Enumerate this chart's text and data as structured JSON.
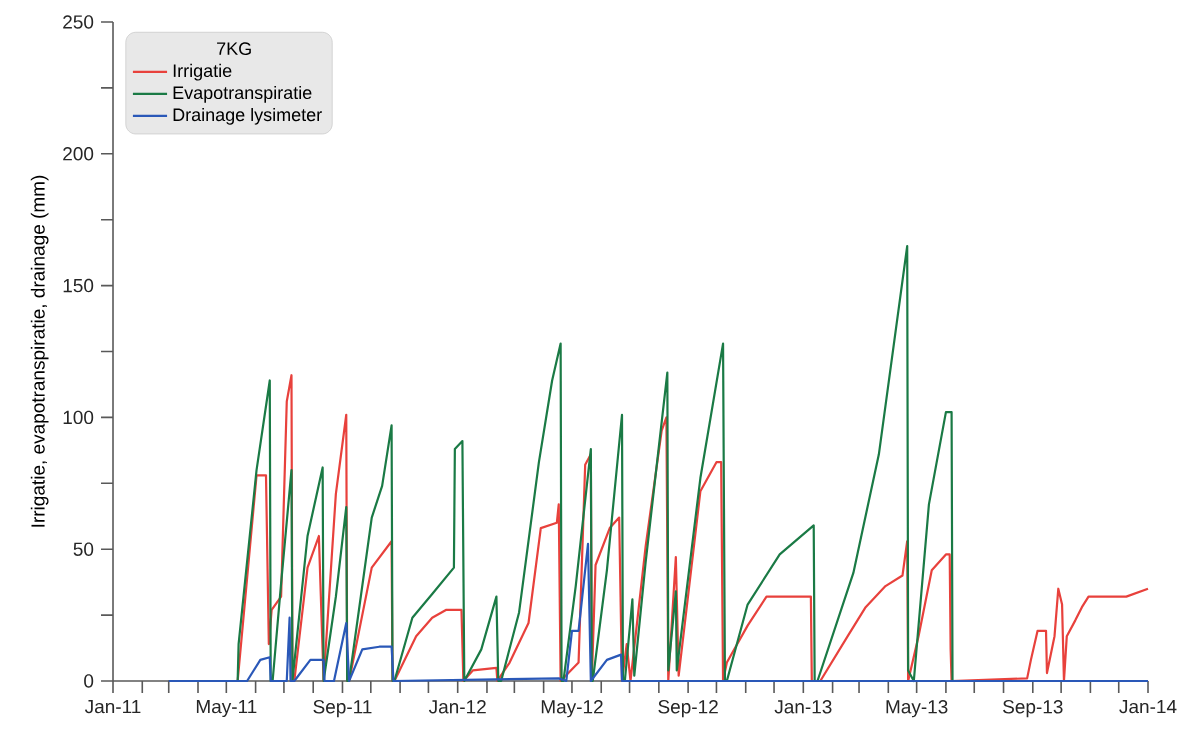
{
  "chart_data": {
    "type": "line",
    "ylabel": "Irrigatie, evapotranspiratie, drainage (mm)",
    "legend_title": "7KG",
    "legend": "top left",
    "grid": false,
    "marker": "none",
    "line_style": "solid",
    "xlim": [
      "2011-01-01",
      "2014-01-01"
    ],
    "ylim": [
      0,
      250
    ],
    "xticks": [
      {
        "value": "2011-01-01",
        "label": "Jan-11"
      },
      {
        "value": "2011-02-01",
        "label": null
      },
      {
        "value": "2011-03-01",
        "label": null
      },
      {
        "value": "2011-04-01",
        "label": null
      },
      {
        "value": "2011-05-01",
        "label": "May-11"
      },
      {
        "value": "2011-06-01",
        "label": null
      },
      {
        "value": "2011-07-01",
        "label": null
      },
      {
        "value": "2011-08-01",
        "label": null
      },
      {
        "value": "2011-09-01",
        "label": "Sep-11"
      },
      {
        "value": "2011-10-01",
        "label": null
      },
      {
        "value": "2011-11-01",
        "label": null
      },
      {
        "value": "2011-12-01",
        "label": null
      },
      {
        "value": "2012-01-01",
        "label": "Jan-12"
      },
      {
        "value": "2012-02-01",
        "label": null
      },
      {
        "value": "2012-03-01",
        "label": null
      },
      {
        "value": "2012-04-01",
        "label": null
      },
      {
        "value": "2012-05-01",
        "label": "May-12"
      },
      {
        "value": "2012-06-01",
        "label": null
      },
      {
        "value": "2012-07-01",
        "label": null
      },
      {
        "value": "2012-08-01",
        "label": null
      },
      {
        "value": "2012-09-01",
        "label": "Sep-12"
      },
      {
        "value": "2012-10-01",
        "label": null
      },
      {
        "value": "2012-11-01",
        "label": null
      },
      {
        "value": "2012-12-01",
        "label": null
      },
      {
        "value": "2013-01-01",
        "label": "Jan-13"
      },
      {
        "value": "2013-02-01",
        "label": null
      },
      {
        "value": "2013-03-01",
        "label": null
      },
      {
        "value": "2013-04-01",
        "label": null
      },
      {
        "value": "2013-05-01",
        "label": "May-13"
      },
      {
        "value": "2013-06-01",
        "label": null
      },
      {
        "value": "2013-07-01",
        "label": null
      },
      {
        "value": "2013-08-01",
        "label": null
      },
      {
        "value": "2013-09-01",
        "label": "Sep-13"
      },
      {
        "value": "2013-10-01",
        "label": null
      },
      {
        "value": "2013-11-01",
        "label": null
      },
      {
        "value": "2013-12-01",
        "label": null
      },
      {
        "value": "2014-01-01",
        "label": "Jan-14"
      }
    ],
    "yticks": [
      0,
      {
        "value": 25,
        "label": null
      },
      50,
      {
        "value": 75,
        "label": null
      },
      100,
      {
        "value": 125,
        "label": null
      },
      150,
      {
        "value": 175,
        "label": null
      },
      200,
      {
        "value": 225,
        "label": null
      },
      250
    ],
    "series": [
      {
        "name": "Irrigatie",
        "color": "#e8413c",
        "x": [
          "2011-03-01",
          "2011-05-13",
          "2011-06-02",
          "2011-06-12",
          "2011-06-15",
          "2011-06-18",
          "2011-06-28",
          "2011-07-04",
          "2011-07-09",
          "2011-07-10",
          "2011-07-12",
          "2011-07-26",
          "2011-08-07",
          "2011-08-12",
          "2011-08-25",
          "2011-09-05",
          "2011-09-06",
          "2011-09-08",
          "2011-10-02",
          "2011-10-23",
          "2011-10-24",
          "2011-10-26",
          "2011-11-18",
          "2011-12-05",
          "2011-12-20",
          "2012-01-05",
          "2012-01-07",
          "2012-01-17",
          "2012-02-11",
          "2012-02-12",
          "2012-02-25",
          "2012-03-16",
          "2012-03-29",
          "2012-04-15",
          "2012-04-17",
          "2012-04-19",
          "2012-05-08",
          "2012-05-15",
          "2012-05-21",
          "2012-05-22",
          "2012-05-26",
          "2012-06-10",
          "2012-06-20",
          "2012-06-23",
          "2012-06-28",
          "2012-07-02",
          "2012-07-18",
          "2012-08-04",
          "2012-08-09",
          "2012-08-11",
          "2012-08-19",
          "2012-08-22",
          "2012-09-14",
          "2012-10-01",
          "2012-10-06",
          "2012-10-08",
          "2012-10-12",
          "2012-11-03",
          "2012-11-23",
          "2013-01-09",
          "2013-01-10",
          "2013-01-19",
          "2013-02-17",
          "2013-03-08",
          "2013-03-29",
          "2013-04-16",
          "2013-04-21",
          "2013-04-22",
          "2013-05-03",
          "2013-05-17",
          "2013-06-01",
          "2013-06-05",
          "2013-06-06",
          "2013-06-07",
          "2013-08-26",
          "2013-08-30",
          "2013-09-06",
          "2013-09-15",
          "2013-09-16",
          "2013-09-24",
          "2013-09-28",
          "2013-10-02",
          "2013-10-04",
          "2013-10-07",
          "2013-10-16",
          "2013-10-23",
          "2013-10-30",
          "2013-12-09",
          "2014-01-01"
        ],
        "values": [
          0,
          0,
          78,
          78,
          14,
          27,
          32,
          106,
          116,
          0,
          0,
          43,
          55,
          0,
          71,
          101,
          0,
          0,
          43,
          53,
          0,
          0,
          17,
          24,
          27,
          27,
          0,
          4,
          5,
          0,
          7,
          22,
          58,
          60,
          67,
          0,
          7,
          82,
          86,
          0,
          44,
          58,
          62,
          0,
          14,
          0,
          51,
          95,
          100,
          0,
          47,
          2,
          72,
          83,
          83,
          0,
          7,
          21,
          32,
          32,
          0,
          0,
          17,
          28,
          36,
          40,
          53,
          0,
          17,
          42,
          48,
          48,
          12,
          0,
          1,
          8,
          19,
          19,
          3,
          17,
          35,
          29,
          0,
          17,
          23,
          28,
          32,
          32,
          35
        ]
      },
      {
        "name": "Evapotranspiratie",
        "color": "#1a7a45",
        "x": [
          "2011-03-01",
          "2011-05-13",
          "2011-05-14",
          "2011-06-02",
          "2011-06-16",
          "2011-06-17",
          "2011-06-19",
          "2011-06-28",
          "2011-07-09",
          "2011-07-10",
          "2011-07-26",
          "2011-08-11",
          "2011-08-12",
          "2011-08-25",
          "2011-09-05",
          "2011-09-06",
          "2011-09-08",
          "2011-10-02",
          "2011-10-13",
          "2011-10-23",
          "2011-10-24",
          "2011-10-26",
          "2011-11-14",
          "2011-12-05",
          "2011-12-28",
          "2011-12-29",
          "2012-01-06",
          "2012-01-08",
          "2012-01-26",
          "2012-02-11",
          "2012-02-13",
          "2012-02-16",
          "2012-03-06",
          "2012-03-27",
          "2012-04-10",
          "2012-04-19",
          "2012-04-20",
          "2012-04-22",
          "2012-05-05",
          "2012-05-21",
          "2012-05-22",
          "2012-05-23",
          "2012-06-07",
          "2012-06-23",
          "2012-06-24",
          "2012-06-26",
          "2012-07-04",
          "2012-07-06",
          "2012-07-18",
          "2012-08-10",
          "2012-08-11",
          "2012-08-19",
          "2012-08-20",
          "2012-09-14",
          "2012-10-08",
          "2012-10-10",
          "2012-10-12",
          "2012-11-03",
          "2012-12-07",
          "2013-01-12",
          "2013-01-13",
          "2013-01-16",
          "2013-02-23",
          "2013-03-22",
          "2013-04-21",
          "2013-04-22",
          "2013-04-28",
          "2013-05-14",
          "2013-06-01",
          "2013-06-07",
          "2013-06-08",
          "2014-01-01"
        ],
        "values": [
          0,
          0,
          14,
          80,
          114,
          0,
          0,
          37,
          80,
          0,
          55,
          81,
          0,
          32,
          66,
          0,
          0,
          62,
          74,
          97,
          0,
          0,
          24,
          33,
          43,
          88,
          91,
          0,
          12,
          32,
          0,
          0,
          26,
          83,
          114,
          128,
          0,
          0,
          36,
          88,
          0,
          0,
          42,
          101,
          0,
          0,
          31,
          2,
          45,
          117,
          4,
          34,
          4,
          77,
          128,
          0,
          0,
          29,
          48,
          59,
          0,
          0,
          41,
          86,
          165,
          4,
          0,
          67,
          102,
          102,
          0,
          0
        ]
      },
      {
        "name": "Drainage lysimeter",
        "color": "#2a58b8",
        "x": [
          "2011-03-01",
          "2011-05-23",
          "2011-06-06",
          "2011-06-16",
          "2011-06-17",
          "2011-07-04",
          "2011-07-07",
          "2011-07-08",
          "2011-07-12",
          "2011-07-29",
          "2011-08-12",
          "2011-08-13",
          "2011-08-23",
          "2011-09-05",
          "2011-09-08",
          "2011-09-22",
          "2011-10-10",
          "2011-10-23",
          "2011-10-25",
          "2012-04-17",
          "2012-04-25",
          "2012-05-01",
          "2012-05-08",
          "2012-05-18",
          "2012-05-21",
          "2012-06-07",
          "2012-06-22",
          "2012-06-23",
          "2014-01-01"
        ],
        "values": [
          0,
          0,
          8,
          9,
          0,
          0,
          24,
          0,
          0,
          8,
          8,
          0,
          0,
          22,
          0,
          12,
          13,
          13,
          0,
          1,
          0,
          19,
          19,
          52,
          0,
          8,
          10,
          0,
          0
        ]
      }
    ]
  }
}
